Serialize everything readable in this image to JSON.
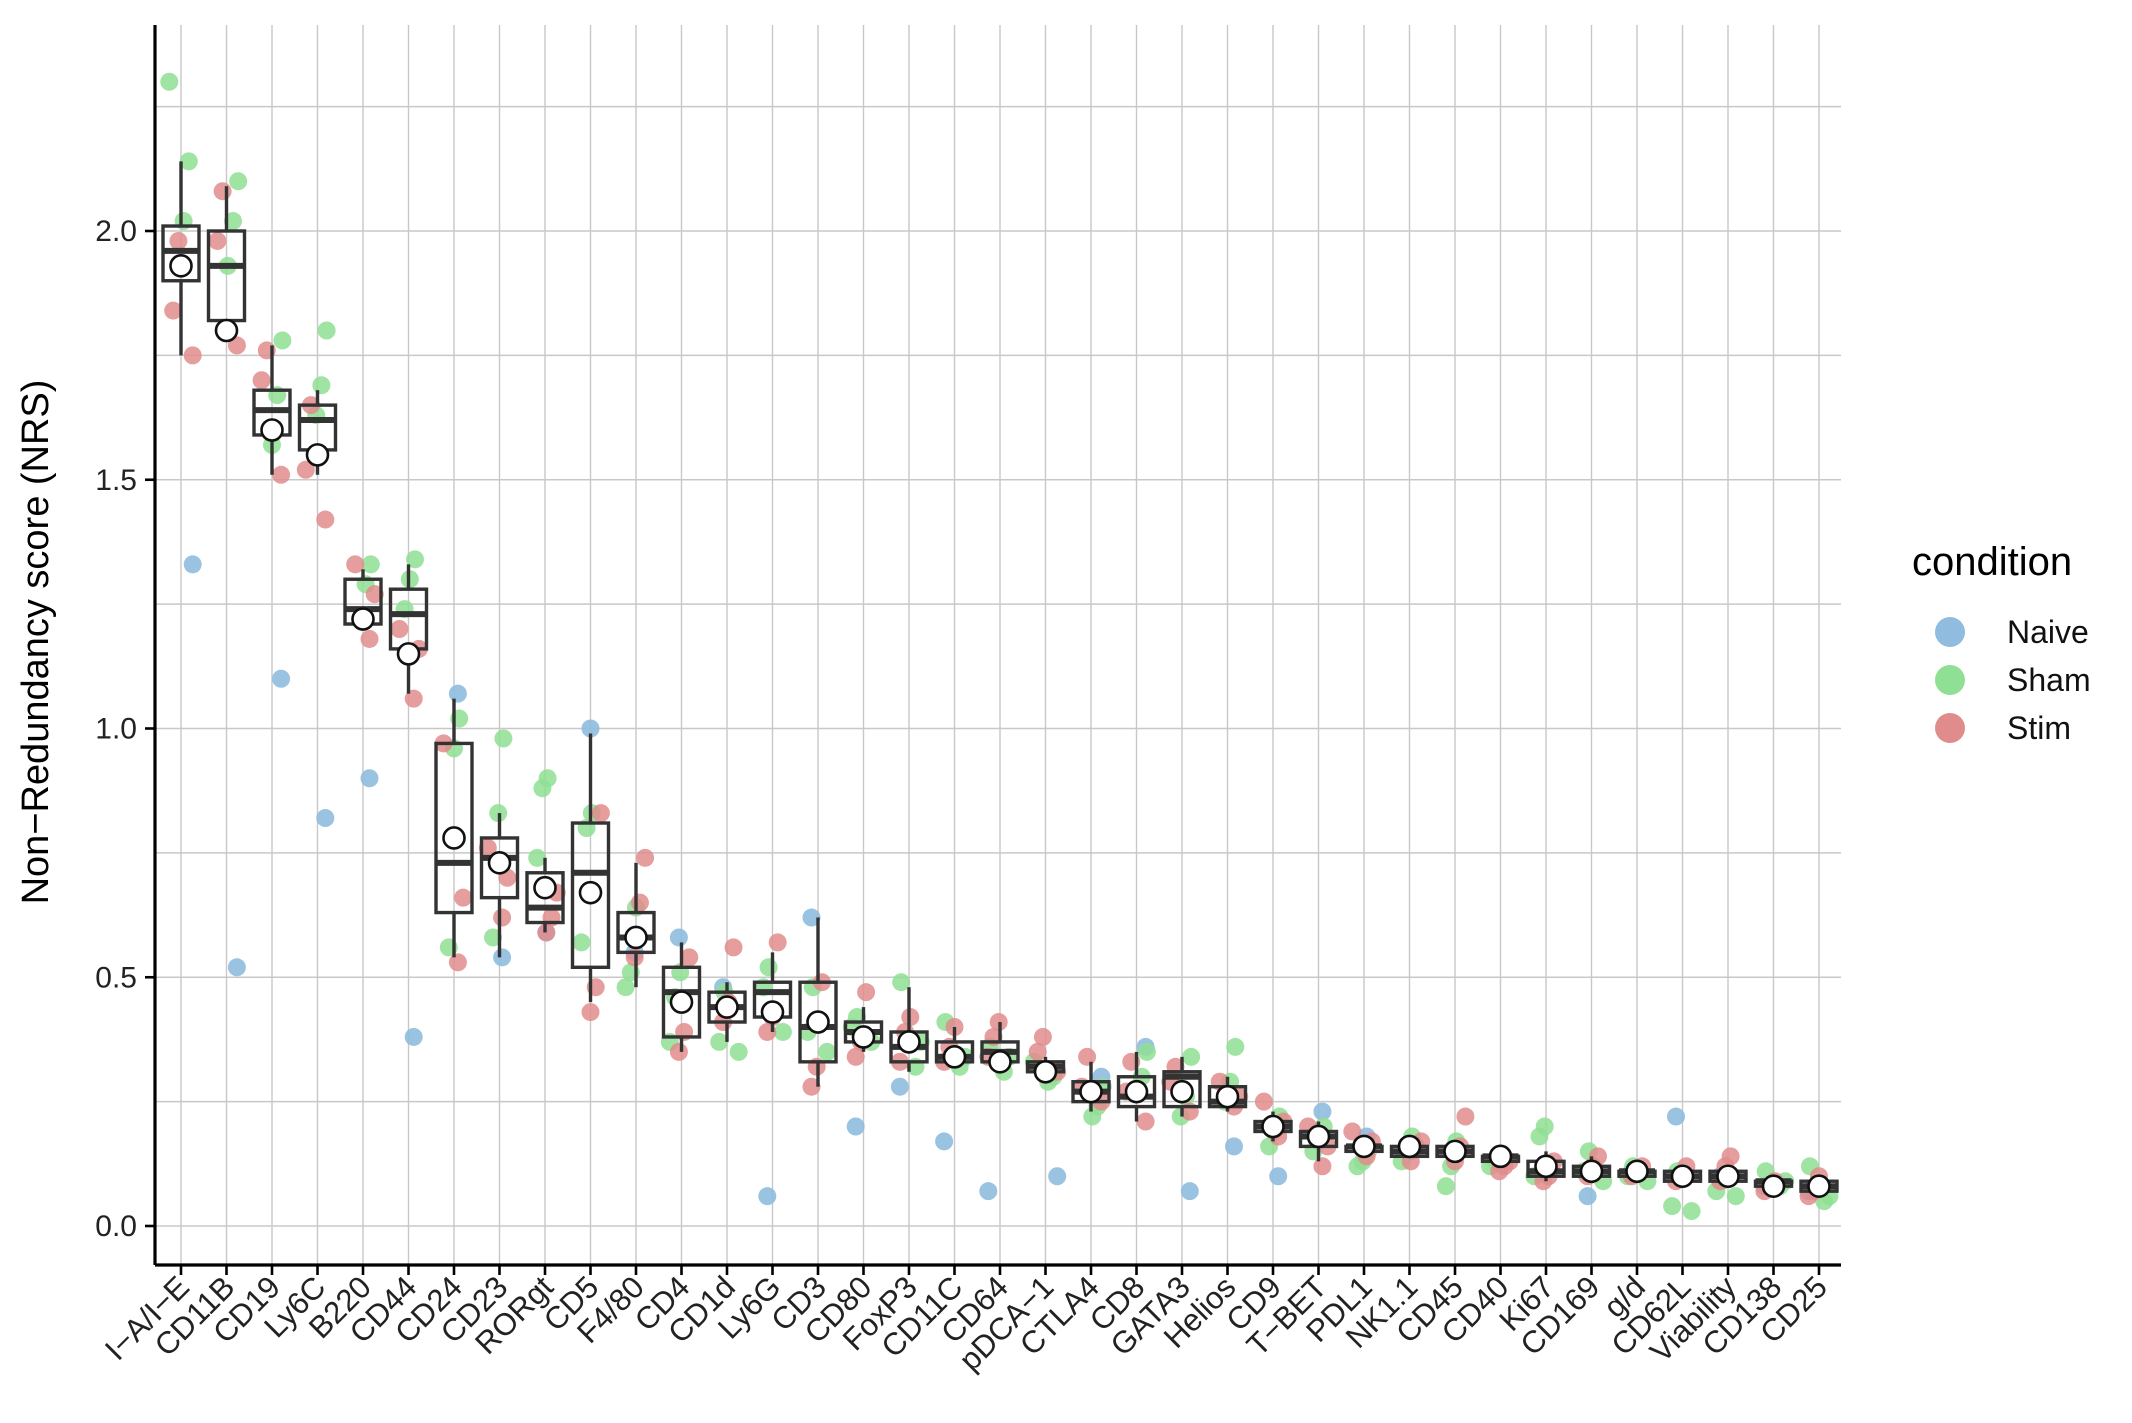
{
  "chart_data": {
    "type": "box",
    "title": "",
    "xlabel": "",
    "ylabel": "Non−Redundancy score (NRS)",
    "ylim": [
      -0.08,
      2.42
    ],
    "yticks": [
      0.0,
      0.5,
      1.0,
      1.5,
      2.0
    ],
    "ytick_labels": [
      "0.0",
      "0.5",
      "1.0",
      "1.5",
      "2.0"
    ],
    "grid": true,
    "legend": {
      "title": "condition",
      "position": "right",
      "entries": [
        {
          "name": "Naive",
          "color": "#8fbcdf"
        },
        {
          "name": "Sham",
          "color": "#8fdf94"
        },
        {
          "name": "Stim",
          "color": "#e08c8c"
        }
      ]
    },
    "categories": [
      "I−A/I−E",
      "CD11B",
      "CD19",
      "Ly6C",
      "B220",
      "CD44",
      "CD24",
      "CD23",
      "RORgt",
      "CD5",
      "F4/80",
      "CD4",
      "CD1d",
      "Ly6G",
      "CD3",
      "CD80",
      "FoxP3",
      "CD11C",
      "CD64",
      "pDCA−1",
      "CTLA4",
      "CD8",
      "GATA3",
      "Helios",
      "CD9",
      "T−BET",
      "PDL1",
      "NK1.1",
      "CD45",
      "CD40",
      "Ki67",
      "CD169",
      "g/d",
      "CD62L",
      "Viability",
      "CD138",
      "CD25"
    ],
    "boxes": [
      {
        "q1": 1.9,
        "median": 1.96,
        "q3": 2.01,
        "wlo": 1.75,
        "whi": 2.14,
        "mean": 1.93
      },
      {
        "q1": 1.82,
        "median": 1.93,
        "q3": 2.0,
        "wlo": 1.78,
        "whi": 2.09,
        "mean": 1.8
      },
      {
        "q1": 1.59,
        "median": 1.64,
        "q3": 1.68,
        "wlo": 1.51,
        "whi": 1.77,
        "mean": 1.6
      },
      {
        "q1": 1.56,
        "median": 1.62,
        "q3": 1.65,
        "wlo": 1.51,
        "whi": 1.68,
        "mean": 1.55
      },
      {
        "q1": 1.21,
        "median": 1.24,
        "q3": 1.3,
        "wlo": 1.2,
        "whi": 1.32,
        "mean": 1.22
      },
      {
        "q1": 1.16,
        "median": 1.23,
        "q3": 1.28,
        "wlo": 1.07,
        "whi": 1.33,
        "mean": 1.15
      },
      {
        "q1": 0.63,
        "median": 0.73,
        "q3": 0.97,
        "wlo": 0.54,
        "whi": 1.06,
        "mean": 0.78
      },
      {
        "q1": 0.66,
        "median": 0.74,
        "q3": 0.78,
        "wlo": 0.54,
        "whi": 0.83,
        "mean": 0.73
      },
      {
        "q1": 0.61,
        "median": 0.64,
        "q3": 0.71,
        "wlo": 0.59,
        "whi": 0.74,
        "mean": 0.68
      },
      {
        "q1": 0.52,
        "median": 0.71,
        "q3": 0.81,
        "wlo": 0.45,
        "whi": 0.99,
        "mean": 0.67
      },
      {
        "q1": 0.55,
        "median": 0.58,
        "q3": 0.63,
        "wlo": 0.48,
        "whi": 0.73,
        "mean": 0.58
      },
      {
        "q1": 0.38,
        "median": 0.47,
        "q3": 0.52,
        "wlo": 0.35,
        "whi": 0.57,
        "mean": 0.45
      },
      {
        "q1": 0.41,
        "median": 0.44,
        "q3": 0.47,
        "wlo": 0.37,
        "whi": 0.49,
        "mean": 0.44
      },
      {
        "q1": 0.42,
        "median": 0.47,
        "q3": 0.49,
        "wlo": 0.39,
        "whi": 0.55,
        "mean": 0.43
      },
      {
        "q1": 0.33,
        "median": 0.4,
        "q3": 0.49,
        "wlo": 0.28,
        "whi": 0.62,
        "mean": 0.41
      },
      {
        "q1": 0.37,
        "median": 0.39,
        "q3": 0.41,
        "wlo": 0.35,
        "whi": 0.44,
        "mean": 0.38
      },
      {
        "q1": 0.33,
        "median": 0.36,
        "q3": 0.39,
        "wlo": 0.31,
        "whi": 0.48,
        "mean": 0.37
      },
      {
        "q1": 0.33,
        "median": 0.34,
        "q3": 0.37,
        "wlo": 0.32,
        "whi": 0.4,
        "mean": 0.34
      },
      {
        "q1": 0.33,
        "median": 0.35,
        "q3": 0.37,
        "wlo": 0.31,
        "whi": 0.41,
        "mean": 0.33
      },
      {
        "q1": 0.31,
        "median": 0.32,
        "q3": 0.33,
        "wlo": 0.3,
        "whi": 0.34,
        "mean": 0.31
      },
      {
        "q1": 0.25,
        "median": 0.27,
        "q3": 0.29,
        "wlo": 0.23,
        "whi": 0.33,
        "mean": 0.27
      },
      {
        "q1": 0.24,
        "median": 0.26,
        "q3": 0.3,
        "wlo": 0.21,
        "whi": 0.35,
        "mean": 0.27
      },
      {
        "q1": 0.24,
        "median": 0.3,
        "q3": 0.31,
        "wlo": 0.22,
        "whi": 0.34,
        "mean": 0.27
      },
      {
        "q1": 0.24,
        "median": 0.25,
        "q3": 0.28,
        "wlo": 0.23,
        "whi": 0.3,
        "mean": 0.26
      },
      {
        "q1": 0.19,
        "median": 0.2,
        "q3": 0.21,
        "wlo": 0.17,
        "whi": 0.23,
        "mean": 0.2
      },
      {
        "q1": 0.16,
        "median": 0.18,
        "q3": 0.19,
        "wlo": 0.13,
        "whi": 0.21,
        "mean": 0.18
      },
      {
        "q1": 0.15,
        "median": 0.16,
        "q3": 0.16,
        "wlo": 0.14,
        "whi": 0.18,
        "mean": 0.16
      },
      {
        "q1": 0.14,
        "median": 0.15,
        "q3": 0.16,
        "wlo": 0.14,
        "whi": 0.17,
        "mean": 0.16
      },
      {
        "q1": 0.14,
        "median": 0.15,
        "q3": 0.16,
        "wlo": 0.13,
        "whi": 0.17,
        "mean": 0.15
      },
      {
        "q1": 0.13,
        "median": 0.14,
        "q3": 0.14,
        "wlo": 0.12,
        "whi": 0.15,
        "mean": 0.14
      },
      {
        "q1": 0.1,
        "median": 0.11,
        "q3": 0.13,
        "wlo": 0.09,
        "whi": 0.15,
        "mean": 0.12
      },
      {
        "q1": 0.1,
        "median": 0.11,
        "q3": 0.12,
        "wlo": 0.09,
        "whi": 0.14,
        "mean": 0.11
      },
      {
        "q1": 0.1,
        "median": 0.11,
        "q3": 0.11,
        "wlo": 0.1,
        "whi": 0.12,
        "mean": 0.11
      },
      {
        "q1": 0.09,
        "median": 0.1,
        "q3": 0.11,
        "wlo": 0.08,
        "whi": 0.12,
        "mean": 0.1
      },
      {
        "q1": 0.09,
        "median": 0.1,
        "q3": 0.11,
        "wlo": 0.08,
        "whi": 0.12,
        "mean": 0.1
      },
      {
        "q1": 0.08,
        "median": 0.09,
        "q3": 0.09,
        "wlo": 0.07,
        "whi": 0.1,
        "mean": 0.08
      },
      {
        "q1": 0.07,
        "median": 0.08,
        "q3": 0.09,
        "wlo": 0.07,
        "whi": 0.1,
        "mean": 0.08
      }
    ],
    "points": {
      "Naive": [
        1.33,
        0.52,
        1.1,
        0.82,
        0.9,
        0.38,
        1.07,
        0.54,
        0.59,
        1.0,
        0.55,
        0.58,
        0.48,
        0.06,
        0.62,
        0.2,
        0.28,
        0.17,
        0.07,
        0.1,
        0.3,
        0.36,
        0.07,
        0.16,
        0.1,
        0.23,
        0.18,
        0.15,
        0.15,
        0.13,
        0.12,
        0.06,
        0.11,
        0.22,
        0.1,
        0.08,
        0.07
      ],
      "Sham": [
        [
          2.3,
          2.14,
          2.02
        ],
        [
          2.1,
          2.02,
          1.93
        ],
        [
          1.78,
          1.67,
          1.57
        ],
        [
          1.8,
          1.69,
          1.63
        ],
        [
          1.33,
          1.29,
          1.22
        ],
        [
          1.34,
          1.3,
          1.24
        ],
        [
          1.02,
          0.96,
          0.56
        ],
        [
          0.98,
          0.83,
          0.58
        ],
        [
          0.9,
          0.88,
          0.74
        ],
        [
          0.83,
          0.8,
          0.57
        ],
        [
          0.64,
          0.51,
          0.48
        ],
        [
          0.51,
          0.46,
          0.37
        ],
        [
          0.47,
          0.37,
          0.35
        ],
        [
          0.52,
          0.48,
          0.39
        ],
        [
          0.48,
          0.39,
          0.35
        ],
        [
          0.42,
          0.4,
          0.37
        ],
        [
          0.49,
          0.37,
          0.32
        ],
        [
          0.41,
          0.34,
          0.32
        ],
        [
          0.36,
          0.34,
          0.31
        ],
        [
          0.33,
          0.3,
          0.29
        ],
        [
          0.28,
          0.24,
          0.22
        ],
        [
          0.35,
          0.3,
          0.27
        ],
        [
          0.34,
          0.26,
          0.22
        ],
        [
          0.36,
          0.29,
          0.25
        ],
        [
          0.22,
          0.19,
          0.16
        ],
        [
          0.2,
          0.17,
          0.15
        ],
        [
          0.15,
          0.13,
          0.12
        ],
        [
          0.18,
          0.15,
          0.13
        ],
        [
          0.17,
          0.12,
          0.08
        ],
        [
          0.14,
          0.13,
          0.12
        ],
        [
          0.2,
          0.18,
          0.1
        ],
        [
          0.15,
          0.11,
          0.09
        ],
        [
          0.12,
          0.1,
          0.09
        ],
        [
          0.11,
          0.04,
          0.03
        ],
        [
          0.09,
          0.07,
          0.06
        ],
        [
          0.11,
          0.09,
          0.08
        ],
        [
          0.12,
          0.06,
          0.05
        ]
      ],
      "Stim": [
        [
          1.98,
          1.84,
          1.75
        ],
        [
          2.08,
          1.98,
          1.77
        ],
        [
          1.76,
          1.7,
          1.51
        ],
        [
          1.65,
          1.52,
          1.42
        ],
        [
          1.33,
          1.27,
          1.18
        ],
        [
          1.2,
          1.16,
          1.06
        ],
        [
          0.97,
          0.66,
          0.53
        ],
        [
          0.76,
          0.7,
          0.62
        ],
        [
          0.67,
          0.62,
          0.59
        ],
        [
          0.83,
          0.48,
          0.43
        ],
        [
          0.74,
          0.65,
          0.54
        ],
        [
          0.54,
          0.39,
          0.35
        ],
        [
          0.56,
          0.45,
          0.41
        ],
        [
          0.57,
          0.42,
          0.39
        ],
        [
          0.49,
          0.32,
          0.28
        ],
        [
          0.47,
          0.37,
          0.34
        ],
        [
          0.42,
          0.39,
          0.33
        ],
        [
          0.4,
          0.36,
          0.33
        ],
        [
          0.41,
          0.38,
          0.34
        ],
        [
          0.38,
          0.35,
          0.31
        ],
        [
          0.34,
          0.28,
          0.25
        ],
        [
          0.33,
          0.27,
          0.21
        ],
        [
          0.32,
          0.29,
          0.23
        ],
        [
          0.29,
          0.26,
          0.24
        ],
        [
          0.25,
          0.21,
          0.18
        ],
        [
          0.2,
          0.16,
          0.12
        ],
        [
          0.19,
          0.17,
          0.14
        ],
        [
          0.17,
          0.16,
          0.13
        ],
        [
          0.22,
          0.16,
          0.13
        ],
        [
          0.13,
          0.12,
          0.11
        ],
        [
          0.13,
          0.1,
          0.09
        ],
        [
          0.14,
          0.12,
          0.1
        ],
        [
          0.12,
          0.11,
          0.1
        ],
        [
          0.12,
          0.1,
          0.09
        ],
        [
          0.14,
          0.12,
          0.09
        ],
        [
          0.09,
          0.08,
          0.07
        ],
        [
          0.1,
          0.07,
          0.06
        ]
      ]
    }
  }
}
